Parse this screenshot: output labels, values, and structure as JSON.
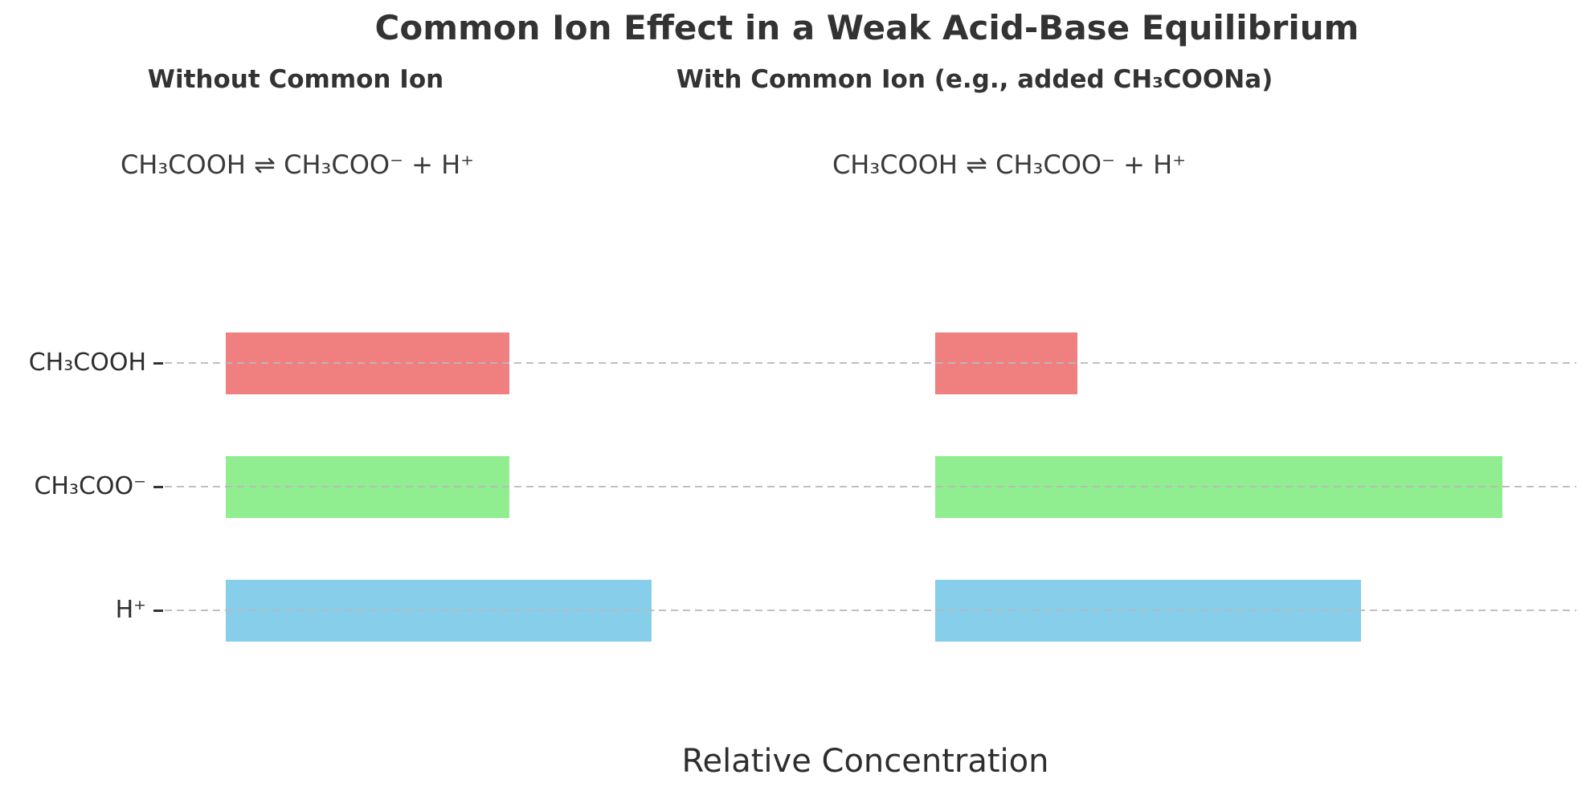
{
  "title": "Common Ion Effect in a Weak Acid-Base Equilibrium",
  "xlabel": "Relative Concentration",
  "panels": [
    {
      "header": "Without Common Ion",
      "equation": "CH₃COOH ⇌ CH₃COO⁻ + H⁺"
    },
    {
      "header": "With Common Ion (e.g., added CH₃COONa)",
      "equation": "CH₃COOH ⇌ CH₃COO⁻ + H⁺"
    }
  ],
  "chart_data": {
    "type": "bar",
    "orientation": "horizontal",
    "title": "Common Ion Effect in a Weak Acid-Base Equilibrium",
    "xlabel": "Relative Concentration",
    "ylabel": "",
    "categories": [
      "CH₃COOH",
      "CH₃COO⁻",
      "H⁺"
    ],
    "series": [
      {
        "name": "Without Common Ion",
        "values": [
          2,
          2,
          3
        ]
      },
      {
        "name": "With Common Ion (e.g., added CH₃COONa)",
        "values": [
          1,
          4,
          3
        ]
      }
    ],
    "bar_colors": [
      "#f08080",
      "#90ee90",
      "#87ceeb"
    ],
    "xlim": [
      -0.43,
      9.52
    ],
    "grid": {
      "axis": "y",
      "style": "dashed",
      "color": "#c8c8c8",
      "on_top_of_bars": true
    },
    "axis_spines": "hidden",
    "x_tick_labels": "none",
    "legend_position": "none"
  },
  "colors": {
    "background": "#ffffff",
    "text": "#333333",
    "gridline": "#c8c8c8",
    "acid_bar": "#f08080",
    "acetate_bar": "#90ee90",
    "hydrogen_bar": "#87ceeb"
  }
}
